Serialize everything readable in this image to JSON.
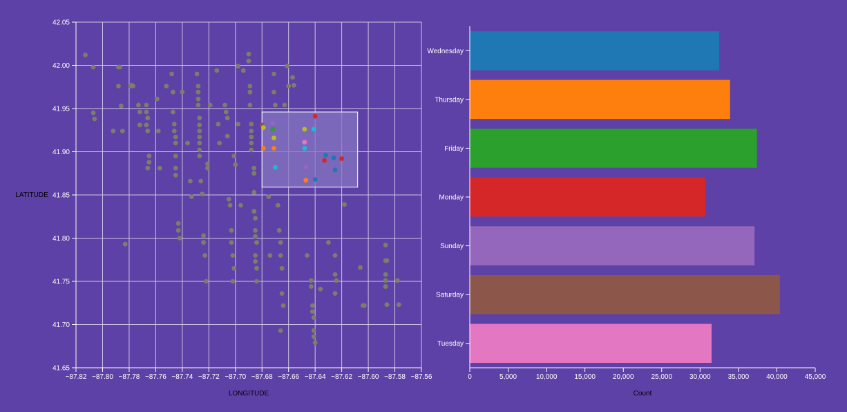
{
  "colors": {
    "background": "#5e41a6",
    "grid": "#cfc6e6",
    "axis_text": "#ffffff",
    "axis_label_text": "#000000",
    "unselected_point": "#7d7d6b",
    "brush_fill": "#8676c0",
    "brush_stroke": "#ffffff"
  },
  "chart_data": [
    {
      "type": "scatter",
      "title": "",
      "xlabel": "LONGITUDE",
      "ylabel": "LATITUDE",
      "xlim": [
        -87.82,
        -87.56
      ],
      "ylim": [
        41.65,
        42.05
      ],
      "grid": true,
      "xticks": [
        -87.82,
        -87.8,
        -87.78,
        -87.76,
        -87.74,
        -87.72,
        -87.7,
        -87.68,
        -87.66,
        -87.64,
        -87.62,
        -87.6,
        -87.58,
        -87.56
      ],
      "xtick_labels": [
        "−87.82",
        "−87.80",
        "−87.78",
        "−87.76",
        "−87.74",
        "−87.72",
        "−87.70",
        "−87.68",
        "−87.66",
        "−87.64",
        "−87.62",
        "−87.60",
        "−87.58",
        "−87.56"
      ],
      "yticks": [
        41.65,
        41.7,
        41.75,
        41.8,
        41.85,
        41.9,
        41.95,
        42.0,
        42.05
      ],
      "ytick_labels": [
        "41.65",
        "41.70",
        "41.75",
        "41.80",
        "41.85",
        "41.90",
        "41.95",
        "42.00",
        "42.05"
      ],
      "brush": {
        "x": [
          -87.68,
          -87.608
        ],
        "y": [
          41.859,
          41.946
        ]
      },
      "points": [
        [
          -87.813,
          42.012
        ],
        [
          -87.807,
          41.998
        ],
        [
          -87.807,
          41.945
        ],
        [
          -87.806,
          41.938
        ],
        [
          -87.788,
          41.998
        ],
        [
          -87.787,
          41.998
        ],
        [
          -87.788,
          41.976
        ],
        [
          -87.786,
          41.953
        ],
        [
          -87.785,
          41.924
        ],
        [
          -87.792,
          41.924
        ],
        [
          -87.783,
          41.793
        ],
        [
          -87.773,
          41.954
        ],
        [
          -87.772,
          41.946
        ],
        [
          -87.772,
          41.931
        ],
        [
          -87.779,
          41.976
        ],
        [
          -87.778,
          41.977
        ],
        [
          -87.777,
          41.976
        ],
        [
          -87.767,
          41.954
        ],
        [
          -87.767,
          41.946
        ],
        [
          -87.766,
          41.939
        ],
        [
          -87.767,
          41.931
        ],
        [
          -87.766,
          41.924
        ],
        [
          -87.765,
          41.895
        ],
        [
          -87.765,
          41.888
        ],
        [
          -87.766,
          41.881
        ],
        [
          -87.758,
          41.924
        ],
        [
          -87.757,
          41.881
        ],
        [
          -87.759,
          41.961
        ],
        [
          -87.752,
          41.976
        ],
        [
          -87.748,
          41.99
        ],
        [
          -87.747,
          41.969
        ],
        [
          -87.747,
          41.946
        ],
        [
          -87.746,
          41.932
        ],
        [
          -87.746,
          41.924
        ],
        [
          -87.745,
          41.917
        ],
        [
          -87.745,
          41.91
        ],
        [
          -87.745,
          41.895
        ],
        [
          -87.745,
          41.881
        ],
        [
          -87.745,
          41.873
        ],
        [
          -87.74,
          41.969
        ],
        [
          -87.736,
          41.91
        ],
        [
          -87.734,
          41.866
        ],
        [
          -87.733,
          41.848
        ],
        [
          -87.743,
          41.817
        ],
        [
          -87.743,
          41.809
        ],
        [
          -87.742,
          41.8
        ],
        [
          -87.729,
          41.99
        ],
        [
          -87.728,
          41.976
        ],
        [
          -87.728,
          41.969
        ],
        [
          -87.728,
          41.961
        ],
        [
          -87.728,
          41.954
        ],
        [
          -87.727,
          41.939
        ],
        [
          -87.727,
          41.931
        ],
        [
          -87.727,
          41.924
        ],
        [
          -87.727,
          41.917
        ],
        [
          -87.727,
          41.91
        ],
        [
          -87.727,
          41.902
        ],
        [
          -87.727,
          41.895
        ],
        [
          -87.726,
          41.866
        ],
        [
          -87.725,
          41.851
        ],
        [
          -87.724,
          41.803
        ],
        [
          -87.724,
          41.795
        ],
        [
          -87.723,
          41.78
        ],
        [
          -87.722,
          41.75
        ],
        [
          -87.721,
          41.886
        ],
        [
          -87.721,
          41.881
        ],
        [
          -87.719,
          41.954
        ],
        [
          -87.714,
          41.994
        ],
        [
          -87.713,
          41.932
        ],
        [
          -87.712,
          41.91
        ],
        [
          -87.708,
          41.954
        ],
        [
          -87.707,
          41.946
        ],
        [
          -87.706,
          41.939
        ],
        [
          -87.706,
          41.918
        ],
        [
          -87.705,
          41.845
        ],
        [
          -87.704,
          41.838
        ],
        [
          -87.703,
          41.809
        ],
        [
          -87.703,
          41.795
        ],
        [
          -87.702,
          41.78
        ],
        [
          -87.701,
          41.765
        ],
        [
          -87.702,
          41.75
        ],
        [
          -87.701,
          41.895
        ],
        [
          -87.7,
          41.885
        ],
        [
          -87.698,
          41.999
        ],
        [
          -87.698,
          41.932
        ],
        [
          -87.696,
          41.838
        ],
        [
          -87.694,
          41.994
        ],
        [
          -87.69,
          42.013
        ],
        [
          -87.69,
          42.005
        ],
        [
          -87.689,
          41.976
        ],
        [
          -87.689,
          41.969
        ],
        [
          -87.689,
          41.954
        ],
        [
          -87.688,
          41.932
        ],
        [
          -87.688,
          41.924
        ],
        [
          -87.688,
          41.917
        ],
        [
          -87.688,
          41.91
        ],
        [
          -87.688,
          41.902
        ],
        [
          -87.686,
          41.881
        ],
        [
          -87.686,
          41.875
        ],
        [
          -87.686,
          41.853
        ],
        [
          -87.686,
          41.831
        ],
        [
          -87.685,
          41.823
        ],
        [
          -87.685,
          41.809
        ],
        [
          -87.685,
          41.802
        ],
        [
          -87.684,
          41.795
        ],
        [
          -87.685,
          41.78
        ],
        [
          -87.685,
          41.773
        ],
        [
          -87.684,
          41.765
        ],
        [
          -87.684,
          41.75
        ],
        [
          -87.675,
          41.848
        ],
        [
          -87.674,
          41.78
        ],
        [
          -87.671,
          41.99
        ],
        [
          -87.671,
          41.969
        ],
        [
          -87.67,
          41.954
        ],
        [
          -87.668,
          41.838
        ],
        [
          -87.667,
          41.809
        ],
        [
          -87.666,
          41.795
        ],
        [
          -87.666,
          41.78
        ],
        [
          -87.665,
          41.765
        ],
        [
          -87.665,
          41.736
        ],
        [
          -87.664,
          41.722
        ],
        [
          -87.666,
          41.693
        ],
        [
          -87.663,
          41.954
        ],
        [
          -87.661,
          41.999
        ],
        [
          -87.66,
          41.976
        ],
        [
          -87.657,
          41.986
        ],
        [
          -87.656,
          41.977
        ],
        [
          -87.646,
          41.78
        ],
        [
          -87.643,
          41.751
        ],
        [
          -87.643,
          41.744
        ],
        [
          -87.642,
          41.722
        ],
        [
          -87.642,
          41.715
        ],
        [
          -87.641,
          41.708
        ],
        [
          -87.641,
          41.693
        ],
        [
          -87.641,
          41.686
        ],
        [
          -87.64,
          41.679
        ],
        [
          -87.636,
          41.741
        ],
        [
          -87.63,
          41.795
        ],
        [
          -87.625,
          41.78
        ],
        [
          -87.625,
          41.758
        ],
        [
          -87.624,
          41.751
        ],
        [
          -87.625,
          41.736
        ],
        [
          -87.618,
          41.839
        ],
        [
          -87.606,
          41.766
        ],
        [
          -87.604,
          41.722
        ],
        [
          -87.603,
          41.722
        ],
        [
          -87.587,
          41.792
        ],
        [
          -87.586,
          41.774
        ],
        [
          -87.587,
          41.774
        ],
        [
          -87.587,
          41.758
        ],
        [
          -87.587,
          41.751
        ],
        [
          -87.587,
          41.744
        ],
        [
          -87.587,
          41.744
        ],
        [
          -87.586,
          41.723
        ],
        [
          -87.578,
          41.751
        ],
        [
          -87.577,
          41.723
        ]
      ],
      "selected_points": [
        {
          "x": -87.68,
          "y": 41.931,
          "color": "#8c564b"
        },
        {
          "x": -87.679,
          "y": 41.928,
          "color": "#bcbd22"
        },
        {
          "x": -87.672,
          "y": 41.933,
          "color": "#9467bd"
        },
        {
          "x": -87.672,
          "y": 41.926,
          "color": "#2ca02c"
        },
        {
          "x": -87.671,
          "y": 41.916,
          "color": "#bcbd22"
        },
        {
          "x": -87.679,
          "y": 41.904,
          "color": "#ff7f0e"
        },
        {
          "x": -87.671,
          "y": 41.904,
          "color": "#ff7f0e"
        },
        {
          "x": -87.67,
          "y": 41.882,
          "color": "#17becf"
        },
        {
          "x": -87.648,
          "y": 41.926,
          "color": "#bcbd22"
        },
        {
          "x": -87.641,
          "y": 41.926,
          "color": "#17becf"
        },
        {
          "x": -87.64,
          "y": 41.941,
          "color": "#d62728"
        },
        {
          "x": -87.648,
          "y": 41.911,
          "color": "#e377c2"
        },
        {
          "x": -87.648,
          "y": 41.904,
          "color": "#17becf"
        },
        {
          "x": -87.647,
          "y": 41.882,
          "color": "#9467bd"
        },
        {
          "x": -87.647,
          "y": 41.867,
          "color": "#ff7f0e"
        },
        {
          "x": -87.64,
          "y": 41.868,
          "color": "#1f77b4"
        },
        {
          "x": -87.633,
          "y": 41.89,
          "color": "#d62728"
        },
        {
          "x": -87.632,
          "y": 41.896,
          "color": "#1f77b4"
        },
        {
          "x": -87.626,
          "y": 41.893,
          "color": "#1f77b4"
        },
        {
          "x": -87.62,
          "y": 41.892,
          "color": "#d62728"
        },
        {
          "x": -87.625,
          "y": 41.879,
          "color": "#1f77b4"
        }
      ]
    },
    {
      "type": "bar",
      "orientation": "horizontal",
      "title": "",
      "xlabel": "Count",
      "ylabel": "",
      "xlim": [
        0,
        45000
      ],
      "grid": false,
      "xticks": [
        0,
        5000,
        10000,
        15000,
        20000,
        25000,
        30000,
        35000,
        40000,
        45000
      ],
      "xtick_labels": [
        "0",
        "5,000",
        "10,000",
        "15,000",
        "20,000",
        "25,000",
        "30,000",
        "35,000",
        "40,000",
        "45,000"
      ],
      "categories": [
        "Wednesday",
        "Thursday",
        "Friday",
        "Monday",
        "Sunday",
        "Saturday",
        "Tuesday"
      ],
      "values": [
        32500,
        33900,
        37400,
        30700,
        37100,
        40400,
        31500
      ],
      "colors": [
        "#1f77b4",
        "#ff7f0e",
        "#2ca02c",
        "#d62728",
        "#9467bd",
        "#8c564b",
        "#e377c2"
      ]
    }
  ]
}
